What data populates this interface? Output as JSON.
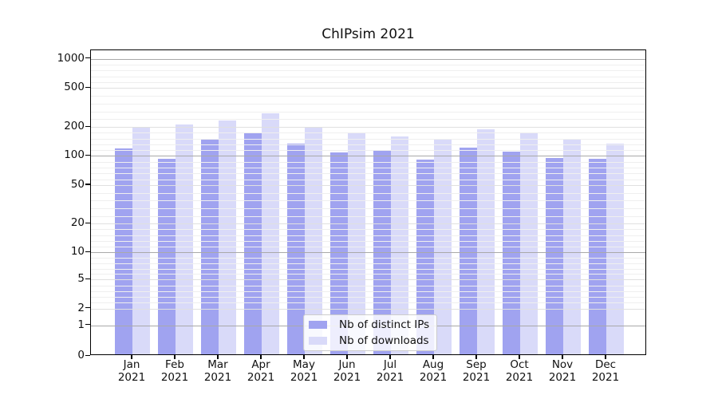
{
  "figure": {
    "title": "ChIPsim 2021"
  },
  "chart_data": {
    "type": "bar",
    "title": "ChIPsim 2021",
    "categories": [
      "Jan 2021",
      "Feb 2021",
      "Mar 2021",
      "Apr 2021",
      "May 2021",
      "Jun 2021",
      "Jul 2021",
      "Aug 2021",
      "Sep 2021",
      "Oct 2021",
      "Nov 2021",
      "Dec 2021"
    ],
    "series": [
      {
        "name": "Nb of distinct IPs",
        "color": "#a0a3f0",
        "values": [
          115,
          90,
          145,
          168,
          128,
          105,
          108,
          88,
          117,
          107,
          91,
          89
        ]
      },
      {
        "name": "Nb of downloads",
        "color": "#d9daf9",
        "values": [
          190,
          205,
          225,
          265,
          195,
          168,
          153,
          146,
          182,
          165,
          146,
          130
        ]
      }
    ],
    "xlabel": "",
    "ylabel": "",
    "yticks": [
      0,
      1,
      2,
      5,
      10,
      20,
      50,
      100,
      200,
      500,
      1000
    ],
    "ylim": [
      0,
      1300
    ],
    "yscale": "log-like with 0 baseline",
    "grid": "horizontal, minor and major",
    "legend_position": "inside lower-center",
    "colors": {
      "decade_gridline": "#a9a9a9",
      "labeled_gridline": "#e0e0e0",
      "minor_gridline": "#efefef",
      "axis_spine": "#000000",
      "legend_border": "#cccccc"
    }
  }
}
